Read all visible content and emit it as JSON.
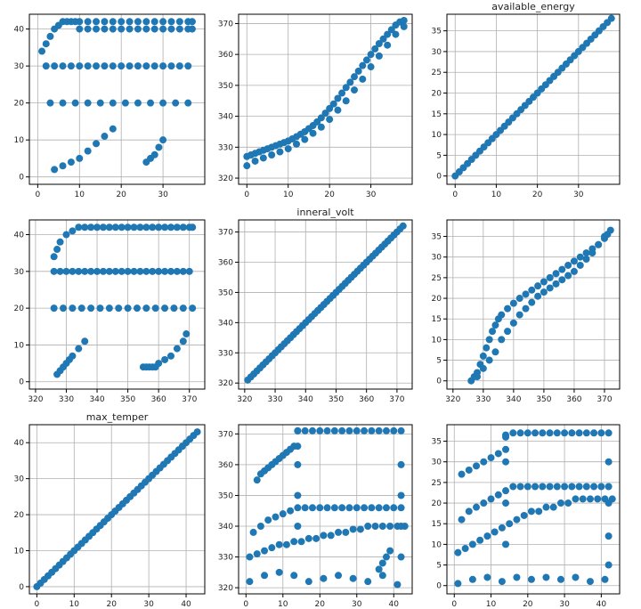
{
  "colors": {
    "marker": "#1f77b4",
    "grid": "#b0b0b0",
    "frame": "#000000"
  },
  "chart_data": [
    {
      "type": "scatter",
      "row": 0,
      "col": 0,
      "title": "",
      "xlim": [
        -2,
        40
      ],
      "ylim": [
        -2,
        44
      ],
      "xticks": [
        0,
        10,
        20,
        30
      ],
      "yticks": [
        0,
        10,
        20,
        30,
        40
      ],
      "grid": true,
      "x": [
        1,
        2,
        3,
        4,
        5,
        6,
        7,
        8,
        9,
        10,
        12,
        14,
        16,
        18,
        20,
        22,
        24,
        26,
        28,
        30,
        32,
        34,
        36,
        37,
        2,
        4,
        6,
        8,
        10,
        12,
        14,
        16,
        18,
        20,
        22,
        24,
        26,
        28,
        30,
        32,
        34,
        36,
        3,
        6,
        9,
        12,
        15,
        18,
        21,
        24,
        27,
        30,
        33,
        36,
        10,
        12,
        14,
        16,
        18,
        20,
        22,
        24,
        26,
        28,
        30,
        32,
        34,
        36,
        37,
        4,
        6,
        8,
        10,
        12,
        14,
        16,
        18,
        26,
        27,
        28,
        29,
        30
      ],
      "y": [
        34,
        36,
        38,
        40,
        41,
        42,
        42,
        42,
        42,
        42,
        42,
        42,
        42,
        42,
        42,
        42,
        42,
        42,
        42,
        42,
        42,
        42,
        42,
        42,
        30,
        30,
        30,
        30,
        30,
        30,
        30,
        30,
        30,
        30,
        30,
        30,
        30,
        30,
        30,
        30,
        30,
        30,
        20,
        20,
        20,
        20,
        20,
        20,
        20,
        20,
        20,
        20,
        20,
        20,
        40,
        40,
        40,
        40,
        40,
        40,
        40,
        40,
        40,
        40,
        40,
        40,
        40,
        40,
        40,
        2,
        3,
        4,
        5,
        7,
        9,
        11,
        13,
        4,
        5,
        6,
        8,
        10
      ]
    },
    {
      "type": "scatter",
      "row": 0,
      "col": 1,
      "title": "",
      "xlim": [
        -2,
        40
      ],
      "ylim": [
        318,
        373
      ],
      "xticks": [
        0,
        10,
        20,
        30
      ],
      "yticks": [
        320,
        330,
        340,
        350,
        360,
        370
      ],
      "grid": true,
      "x": [
        0,
        1,
        2,
        3,
        4,
        5,
        6,
        7,
        8,
        9,
        10,
        11,
        12,
        13,
        14,
        15,
        16,
        17,
        18,
        19,
        20,
        21,
        22,
        23,
        24,
        25,
        26,
        27,
        28,
        29,
        30,
        31,
        32,
        33,
        34,
        35,
        36,
        37,
        38,
        0,
        2,
        4,
        6,
        8,
        10,
        12,
        14,
        16,
        18,
        20,
        22,
        24,
        26,
        28,
        30,
        32,
        34,
        36,
        38
      ],
      "y": [
        327,
        327.5,
        328,
        328.5,
        329,
        329.5,
        330,
        330.5,
        331,
        331.5,
        332,
        332.7,
        333.4,
        334.2,
        335,
        336,
        337,
        338.2,
        339.5,
        341,
        342.5,
        344,
        345.8,
        347.5,
        349.3,
        351,
        352.8,
        354.6,
        356.4,
        358.2,
        360,
        361.8,
        363.5,
        365,
        366.5,
        368,
        369.5,
        370.5,
        371,
        324,
        325.5,
        326.5,
        327.5,
        328.5,
        329.5,
        331,
        332.5,
        334.5,
        336.5,
        339,
        342,
        345,
        348.5,
        352,
        356,
        359.5,
        363,
        366.5,
        369
      ]
    },
    {
      "type": "scatter",
      "row": 0,
      "col": 2,
      "title": "available_energy",
      "xlim": [
        -2,
        40
      ],
      "ylim": [
        -2,
        39
      ],
      "xticks": [
        0,
        10,
        20,
        30
      ],
      "yticks": [
        0,
        5,
        10,
        15,
        20,
        25,
        30,
        35
      ],
      "grid": true,
      "x": [
        0,
        1,
        2,
        3,
        4,
        5,
        6,
        7,
        8,
        9,
        10,
        11,
        12,
        13,
        14,
        15,
        16,
        17,
        18,
        19,
        20,
        21,
        22,
        23,
        24,
        25,
        26,
        27,
        28,
        29,
        30,
        31,
        32,
        33,
        34,
        35,
        36,
        37,
        38
      ],
      "y": [
        0,
        1,
        2,
        3,
        4,
        5,
        6,
        7,
        8,
        9,
        10,
        11,
        12,
        13,
        14,
        15,
        16,
        17,
        18,
        19,
        20,
        21,
        22,
        23,
        24,
        25,
        26,
        27,
        28,
        29,
        30,
        31,
        32,
        33,
        34,
        35,
        36,
        37,
        38
      ]
    },
    {
      "type": "scatter",
      "row": 1,
      "col": 0,
      "title": "",
      "xlim": [
        318,
        375
      ],
      "ylim": [
        -2,
        44
      ],
      "xticks": [
        320,
        330,
        340,
        350,
        360,
        370
      ],
      "yticks": [
        0,
        10,
        20,
        30,
        40
      ],
      "grid": true,
      "x": [
        326,
        327,
        328,
        330,
        332,
        334,
        336,
        338,
        340,
        342,
        344,
        346,
        348,
        350,
        352,
        354,
        356,
        358,
        360,
        362,
        364,
        366,
        368,
        370,
        371,
        326,
        328,
        330,
        332,
        334,
        336,
        338,
        340,
        342,
        344,
        346,
        348,
        350,
        352,
        354,
        356,
        358,
        360,
        362,
        364,
        366,
        368,
        370,
        326,
        329,
        332,
        335,
        338,
        341,
        344,
        347,
        350,
        353,
        356,
        359,
        362,
        365,
        368,
        371,
        355,
        356,
        357,
        358,
        359,
        360,
        362,
        364,
        366,
        368,
        369,
        327,
        328,
        329,
        330,
        331,
        332,
        334,
        336
      ],
      "y": [
        34,
        36,
        38,
        40,
        41,
        42,
        42,
        42,
        42,
        42,
        42,
        42,
        42,
        42,
        42,
        42,
        42,
        42,
        42,
        42,
        42,
        42,
        42,
        42,
        42,
        30,
        30,
        30,
        30,
        30,
        30,
        30,
        30,
        30,
        30,
        30,
        30,
        30,
        30,
        30,
        30,
        30,
        30,
        30,
        30,
        30,
        30,
        30,
        20,
        20,
        20,
        20,
        20,
        20,
        20,
        20,
        20,
        20,
        20,
        20,
        20,
        20,
        20,
        20,
        4,
        4,
        4,
        4,
        4,
        5,
        6,
        7,
        9,
        11,
        13,
        2,
        3,
        4,
        5,
        6,
        7,
        9,
        11
      ]
    },
    {
      "type": "scatter",
      "row": 1,
      "col": 1,
      "title": "inneral_volt",
      "xlim": [
        318,
        375
      ],
      "ylim": [
        318,
        374
      ],
      "xticks": [
        320,
        330,
        340,
        350,
        360,
        370
      ],
      "yticks": [
        320,
        330,
        340,
        350,
        360,
        370
      ],
      "grid": true,
      "x": [
        321,
        322,
        323,
        324,
        325,
        326,
        327,
        328,
        329,
        330,
        331,
        332,
        333,
        334,
        335,
        336,
        337,
        338,
        339,
        340,
        341,
        342,
        343,
        344,
        345,
        346,
        347,
        348,
        349,
        350,
        351,
        352,
        353,
        354,
        355,
        356,
        357,
        358,
        359,
        360,
        361,
        362,
        363,
        364,
        365,
        366,
        367,
        368,
        369,
        370,
        371,
        372
      ],
      "y": [
        321,
        322,
        323,
        324,
        325,
        326,
        327,
        328,
        329,
        330,
        331,
        332,
        333,
        334,
        335,
        336,
        337,
        338,
        339,
        340,
        341,
        342,
        343,
        344,
        345,
        346,
        347,
        348,
        349,
        350,
        351,
        352,
        353,
        354,
        355,
        356,
        357,
        358,
        359,
        360,
        361,
        362,
        363,
        364,
        365,
        366,
        367,
        368,
        369,
        370,
        371,
        372
      ]
    },
    {
      "type": "scatter",
      "row": 1,
      "col": 2,
      "title": "",
      "xlim": [
        318,
        375
      ],
      "ylim": [
        -2,
        39
      ],
      "xticks": [
        320,
        330,
        340,
        350,
        360,
        370
      ],
      "yticks": [
        0,
        5,
        10,
        15,
        20,
        25,
        30,
        35
      ],
      "grid": true,
      "x": [
        326,
        327,
        328,
        329,
        330,
        331,
        332,
        333,
        334,
        335,
        336,
        338,
        340,
        342,
        344,
        346,
        348,
        350,
        352,
        354,
        356,
        358,
        360,
        362,
        364,
        366,
        368,
        370,
        371,
        372,
        328,
        330,
        332,
        334,
        336,
        338,
        340,
        342,
        344,
        346,
        348,
        350,
        352,
        354,
        356,
        358,
        360,
        362,
        364,
        366,
        368,
        370
      ],
      "y": [
        0,
        1,
        2,
        4,
        6,
        8,
        10,
        12,
        13.5,
        15,
        16,
        17.5,
        18.8,
        20,
        21,
        22,
        23,
        24,
        25,
        26,
        27,
        28,
        29,
        30,
        31,
        32,
        33,
        34.5,
        35.5,
        36.5,
        1,
        3,
        5,
        7,
        10,
        12,
        14,
        16,
        17.5,
        19,
        20.5,
        21.5,
        22.5,
        23.5,
        24.5,
        25.5,
        26.5,
        28,
        29.5,
        31,
        33,
        35
      ]
    },
    {
      "type": "scatter",
      "row": 2,
      "col": 0,
      "title": "max_temper",
      "xlim": [
        -2,
        45
      ],
      "ylim": [
        -2,
        45
      ],
      "xticks": [
        0,
        10,
        20,
        30,
        40
      ],
      "yticks": [
        0,
        10,
        20,
        30,
        40
      ],
      "grid": true,
      "x": [
        0,
        1,
        2,
        3,
        4,
        5,
        6,
        7,
        8,
        9,
        10,
        11,
        12,
        13,
        14,
        15,
        16,
        17,
        18,
        19,
        20,
        21,
        22,
        23,
        24,
        25,
        26,
        27,
        28,
        29,
        30,
        31,
        32,
        33,
        34,
        35,
        36,
        37,
        38,
        39,
        40,
        41,
        42,
        43
      ],
      "y": [
        0,
        1,
        2,
        3,
        4,
        5,
        6,
        7,
        8,
        9,
        10,
        11,
        12,
        13,
        14,
        15,
        16,
        17,
        18,
        19,
        20,
        21,
        22,
        23,
        24,
        25,
        26,
        27,
        28,
        29,
        30,
        31,
        32,
        33,
        34,
        35,
        36,
        37,
        38,
        39,
        40,
        41,
        42,
        43
      ]
    },
    {
      "type": "scatter",
      "row": 2,
      "col": 1,
      "title": "",
      "xlim": [
        -2,
        45
      ],
      "ylim": [
        318,
        373
      ],
      "xticks": [
        0,
        10,
        20,
        30,
        40
      ],
      "yticks": [
        320,
        330,
        340,
        350,
        360,
        370
      ],
      "grid": true,
      "x": [
        3,
        4,
        5,
        6,
        7,
        8,
        9,
        10,
        11,
        12,
        13,
        14,
        16,
        18,
        20,
        22,
        24,
        26,
        28,
        30,
        32,
        34,
        36,
        38,
        40,
        42,
        1,
        3,
        5,
        7,
        9,
        11,
        13,
        15,
        17,
        19,
        21,
        23,
        25,
        27,
        29,
        31,
        33,
        35,
        37,
        39,
        41,
        43,
        2,
        4,
        6,
        8,
        10,
        12,
        14,
        16,
        18,
        20,
        22,
        24,
        26,
        28,
        30,
        32,
        34,
        36,
        38,
        40,
        42,
        14,
        14,
        14,
        14,
        14,
        42,
        42,
        42,
        42,
        36,
        37,
        38,
        39,
        1,
        5,
        9,
        13,
        17,
        21,
        25,
        29,
        33,
        37,
        41
      ],
      "y": [
        355,
        357,
        358,
        359,
        360,
        361,
        362,
        363,
        364,
        365,
        366,
        371,
        371,
        371,
        371,
        371,
        371,
        371,
        371,
        371,
        371,
        371,
        371,
        371,
        371,
        371,
        330,
        331,
        332,
        333,
        334,
        334,
        335,
        335,
        336,
        336,
        337,
        337,
        338,
        338,
        339,
        339,
        340,
        340,
        340,
        340,
        340,
        340,
        338,
        340,
        342,
        343,
        344,
        345,
        346,
        346,
        346,
        346,
        346,
        346,
        346,
        346,
        346,
        346,
        346,
        346,
        346,
        346,
        346,
        340,
        350,
        360,
        366,
        371,
        330,
        340,
        350,
        360,
        326,
        328,
        330,
        332,
        322,
        324,
        325,
        324,
        322,
        323,
        324,
        323,
        322,
        324,
        321
      ]
    },
    {
      "type": "scatter",
      "row": 2,
      "col": 2,
      "title": "",
      "xlim": [
        -2,
        45
      ],
      "ylim": [
        -2,
        39
      ],
      "xticks": [
        0,
        10,
        20,
        30,
        40
      ],
      "yticks": [
        0,
        5,
        10,
        15,
        20,
        25,
        30,
        35
      ],
      "grid": true,
      "x": [
        2,
        4,
        6,
        8,
        10,
        12,
        14,
        14,
        16,
        18,
        20,
        22,
        24,
        26,
        28,
        30,
        32,
        34,
        36,
        38,
        40,
        42,
        1,
        3,
        5,
        7,
        9,
        11,
        13,
        15,
        17,
        19,
        21,
        23,
        25,
        27,
        29,
        31,
        33,
        35,
        37,
        39,
        41,
        43,
        2,
        4,
        6,
        8,
        10,
        12,
        14,
        16,
        18,
        20,
        22,
        24,
        26,
        28,
        30,
        32,
        34,
        36,
        38,
        40,
        42,
        14,
        14,
        14,
        14,
        42,
        42,
        42,
        42,
        1,
        5,
        9,
        13,
        17,
        21,
        25,
        29,
        33,
        37,
        41
      ],
      "y": [
        27,
        28,
        29,
        30,
        31,
        32,
        33,
        36.5,
        37,
        37,
        37,
        37,
        37,
        37,
        37,
        37,
        37,
        37,
        37,
        37,
        37,
        37,
        8,
        9,
        10,
        11,
        12,
        13,
        14,
        15,
        16,
        17,
        18,
        18,
        19,
        19,
        20,
        20,
        21,
        21,
        21,
        21,
        21,
        21,
        16,
        18,
        19,
        20,
        21,
        22,
        23,
        24,
        24,
        24,
        24,
        24,
        24,
        24,
        24,
        24,
        24,
        24,
        24,
        24,
        24,
        10,
        20,
        30,
        36,
        5,
        12,
        20,
        30,
        0.5,
        1.5,
        2,
        1,
        2,
        1.5,
        2,
        1.5,
        2,
        1,
        1.5
      ]
    }
  ]
}
